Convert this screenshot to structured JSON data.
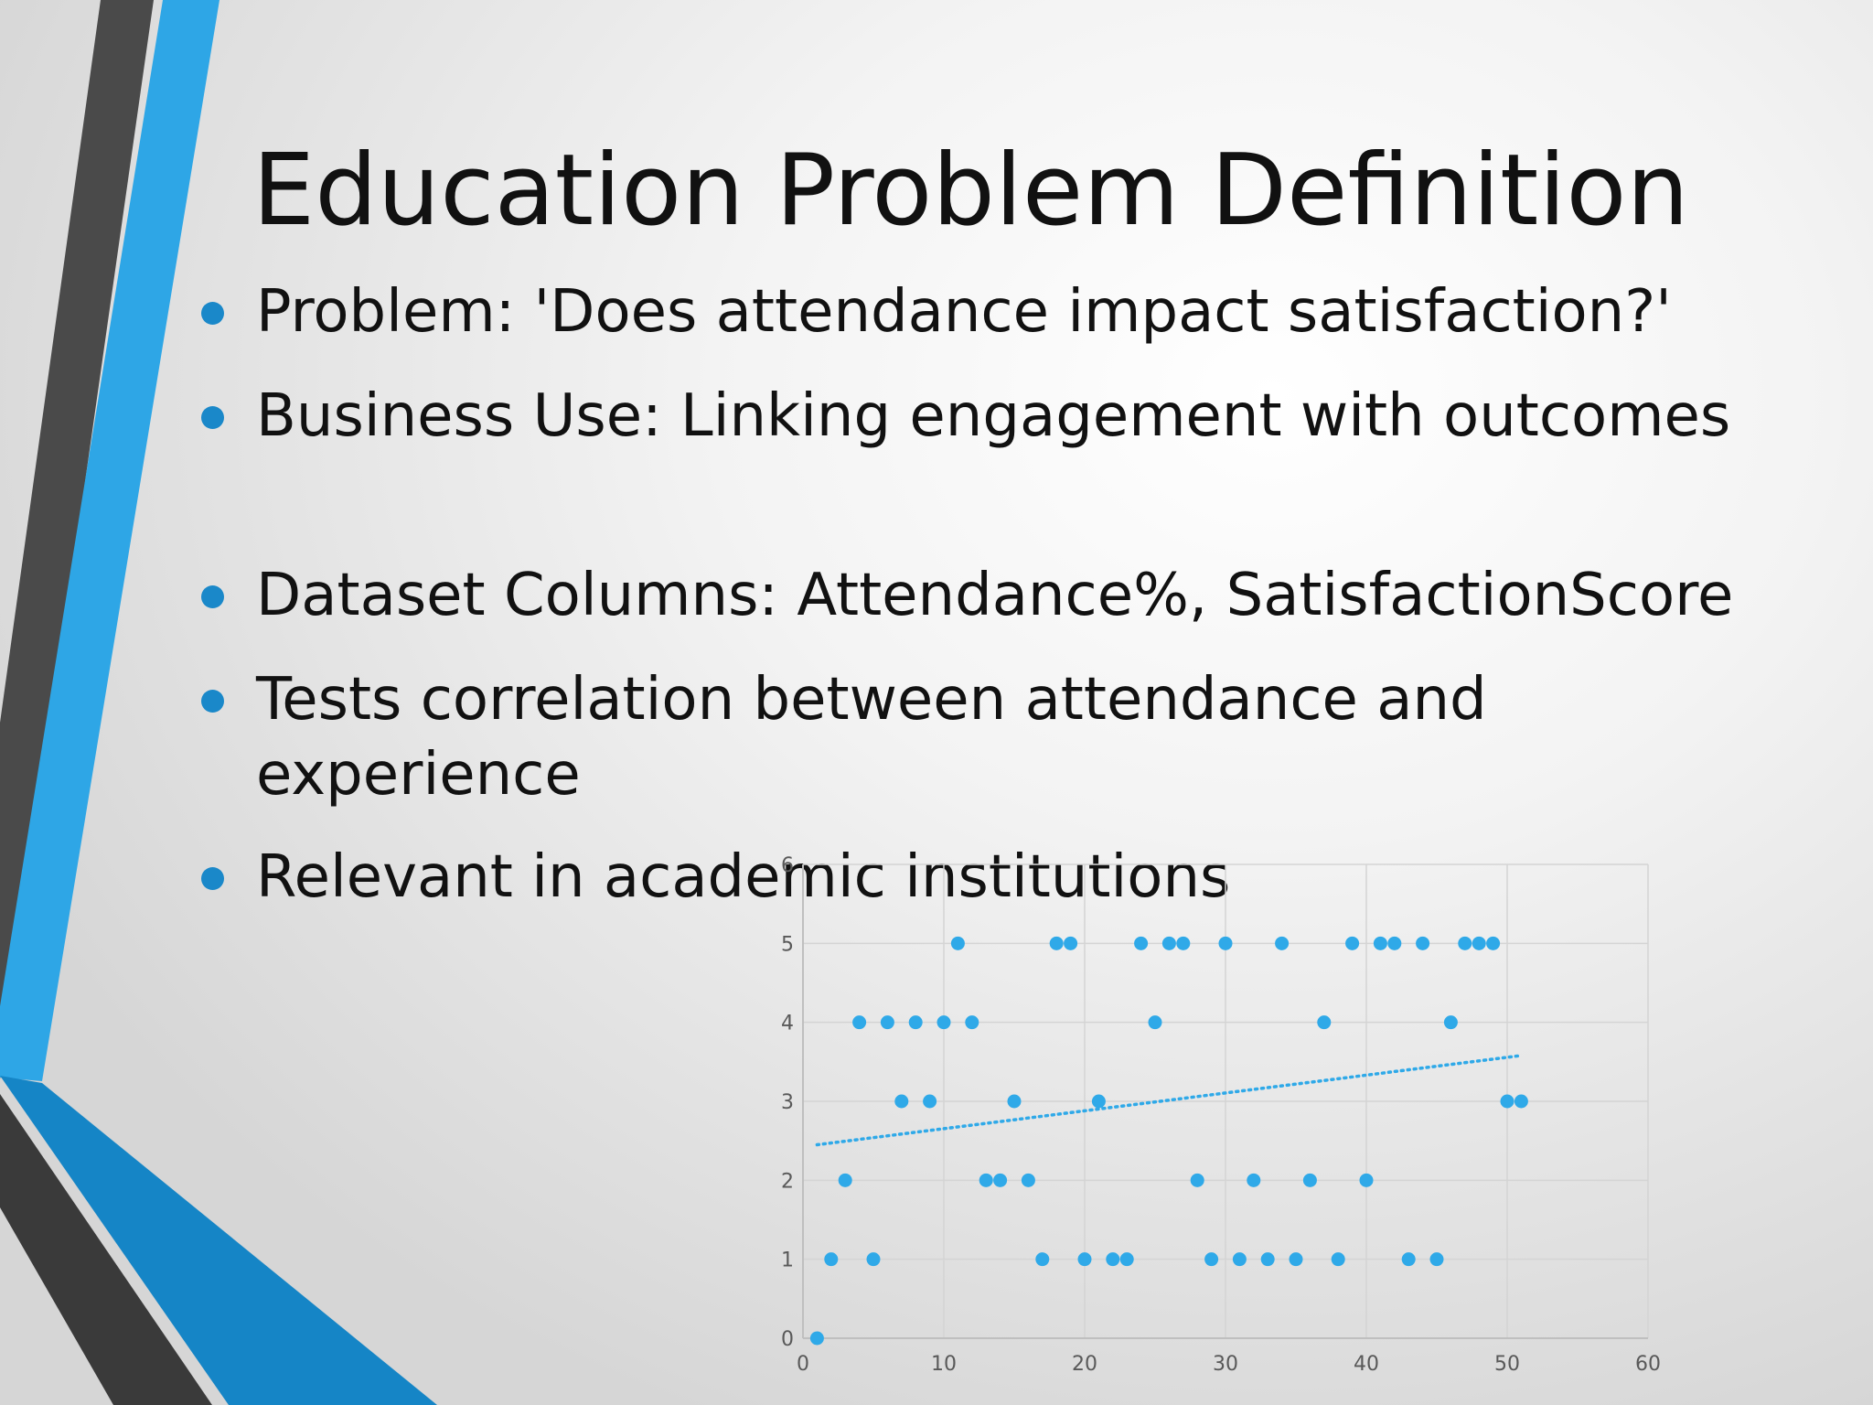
{
  "slide": {
    "title": "Education Problem Definition",
    "bullets": [
      "Problem: 'Does attendance impact satisfaction?'",
      " Business Use: Linking engagement with outcomes",
      " Dataset Columns: Attendance%, SatisfactionScore",
      " Tests correlation between attendance and experience",
      " Relevant in academic institutions"
    ]
  },
  "theme": {
    "accent_light": "#2ea6e6",
    "accent_dark": "#1585c6",
    "stripe_dark": "#4a4a4a",
    "marker": "#2fa9e8",
    "trend": "#2fa9e8"
  },
  "chart_data": {
    "type": "scatter",
    "x": [
      1,
      2,
      3,
      4,
      5,
      6,
      7,
      8,
      9,
      10,
      11,
      12,
      13,
      14,
      15,
      16,
      17,
      18,
      19,
      20,
      21,
      22,
      23,
      24,
      25,
      26,
      27,
      28,
      29,
      30,
      31,
      32,
      33,
      34,
      35,
      36,
      37,
      38,
      39,
      40,
      41,
      42,
      43,
      44,
      45,
      46,
      47,
      48,
      49,
      50,
      51
    ],
    "y": [
      0,
      1,
      2,
      4,
      1,
      4,
      3,
      4,
      3,
      4,
      5,
      4,
      2,
      2,
      3,
      2,
      1,
      5,
      5,
      1,
      3,
      1,
      1,
      5,
      4,
      5,
      5,
      2,
      1,
      5,
      1,
      2,
      1,
      5,
      1,
      2,
      4,
      1,
      5,
      2,
      5,
      5,
      1,
      5,
      1,
      4,
      5,
      5,
      5,
      3,
      3
    ],
    "trendline": {
      "type": "linear",
      "style": "dotted",
      "from": [
        1,
        2.45
      ],
      "to": [
        51,
        3.58
      ]
    },
    "xlim": [
      0,
      60
    ],
    "ylim": [
      0,
      6
    ],
    "xticks": [
      "0",
      "10",
      "20",
      "30",
      "40",
      "50",
      "60"
    ],
    "yticks": [
      "0",
      "1",
      "2",
      "3",
      "4",
      "5",
      "6"
    ],
    "grid": true,
    "legend": "none",
    "title": "",
    "xlabel": "",
    "ylabel": ""
  }
}
